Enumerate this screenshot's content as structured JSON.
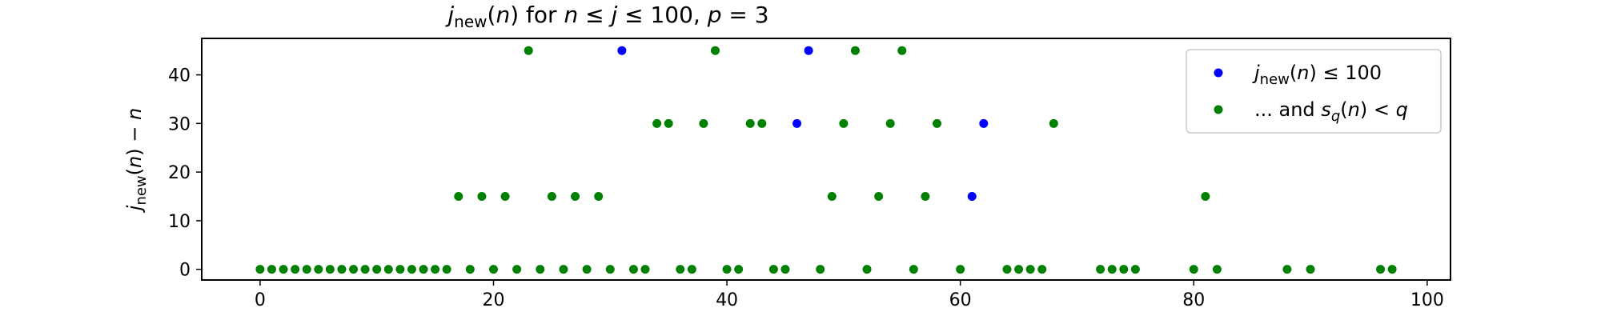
{
  "chart_data": {
    "type": "scatter",
    "title": "j_new(n) for n ≤ j ≤ 100, p = 3",
    "xlabel": "",
    "ylabel": "j_new(n) − n",
    "xlim": [
      -5,
      102
    ],
    "ylim": [
      -2.2,
      47.5
    ],
    "xticks": [
      0,
      20,
      40,
      60,
      80,
      100
    ],
    "yticks": [
      0,
      10,
      20,
      30,
      40
    ],
    "legend_position": "top-right",
    "grid": false,
    "series": [
      {
        "name": "j_new(n) ≤ 100",
        "color": "#0000ff",
        "points": [
          [
            31,
            45
          ],
          [
            47,
            45
          ],
          [
            46,
            30
          ],
          [
            62,
            30
          ],
          [
            61,
            15
          ]
        ]
      },
      {
        "name": "... and s_q(n) < q",
        "color": "#008000",
        "points": [
          [
            0,
            0
          ],
          [
            1,
            0
          ],
          [
            2,
            0
          ],
          [
            3,
            0
          ],
          [
            4,
            0
          ],
          [
            5,
            0
          ],
          [
            6,
            0
          ],
          [
            7,
            0
          ],
          [
            8,
            0
          ],
          [
            9,
            0
          ],
          [
            10,
            0
          ],
          [
            11,
            0
          ],
          [
            12,
            0
          ],
          [
            13,
            0
          ],
          [
            14,
            0
          ],
          [
            15,
            0
          ],
          [
            16,
            0
          ],
          [
            18,
            0
          ],
          [
            20,
            0
          ],
          [
            22,
            0
          ],
          [
            24,
            0
          ],
          [
            26,
            0
          ],
          [
            28,
            0
          ],
          [
            30,
            0
          ],
          [
            32,
            0
          ],
          [
            33,
            0
          ],
          [
            36,
            0
          ],
          [
            37,
            0
          ],
          [
            40,
            0
          ],
          [
            41,
            0
          ],
          [
            44,
            0
          ],
          [
            45,
            0
          ],
          [
            48,
            0
          ],
          [
            52,
            0
          ],
          [
            56,
            0
          ],
          [
            60,
            0
          ],
          [
            64,
            0
          ],
          [
            65,
            0
          ],
          [
            66,
            0
          ],
          [
            67,
            0
          ],
          [
            72,
            0
          ],
          [
            73,
            0
          ],
          [
            74,
            0
          ],
          [
            75,
            0
          ],
          [
            80,
            0
          ],
          [
            82,
            0
          ],
          [
            88,
            0
          ],
          [
            90,
            0
          ],
          [
            96,
            0
          ],
          [
            97,
            0
          ],
          [
            17,
            15
          ],
          [
            19,
            15
          ],
          [
            21,
            15
          ],
          [
            25,
            15
          ],
          [
            27,
            15
          ],
          [
            29,
            15
          ],
          [
            49,
            15
          ],
          [
            53,
            15
          ],
          [
            57,
            15
          ],
          [
            81,
            15
          ],
          [
            34,
            30
          ],
          [
            35,
            30
          ],
          [
            38,
            30
          ],
          [
            42,
            30
          ],
          [
            43,
            30
          ],
          [
            50,
            30
          ],
          [
            54,
            30
          ],
          [
            58,
            30
          ],
          [
            68,
            30
          ],
          [
            23,
            45
          ],
          [
            39,
            45
          ],
          [
            51,
            45
          ],
          [
            55,
            45
          ]
        ]
      }
    ]
  }
}
